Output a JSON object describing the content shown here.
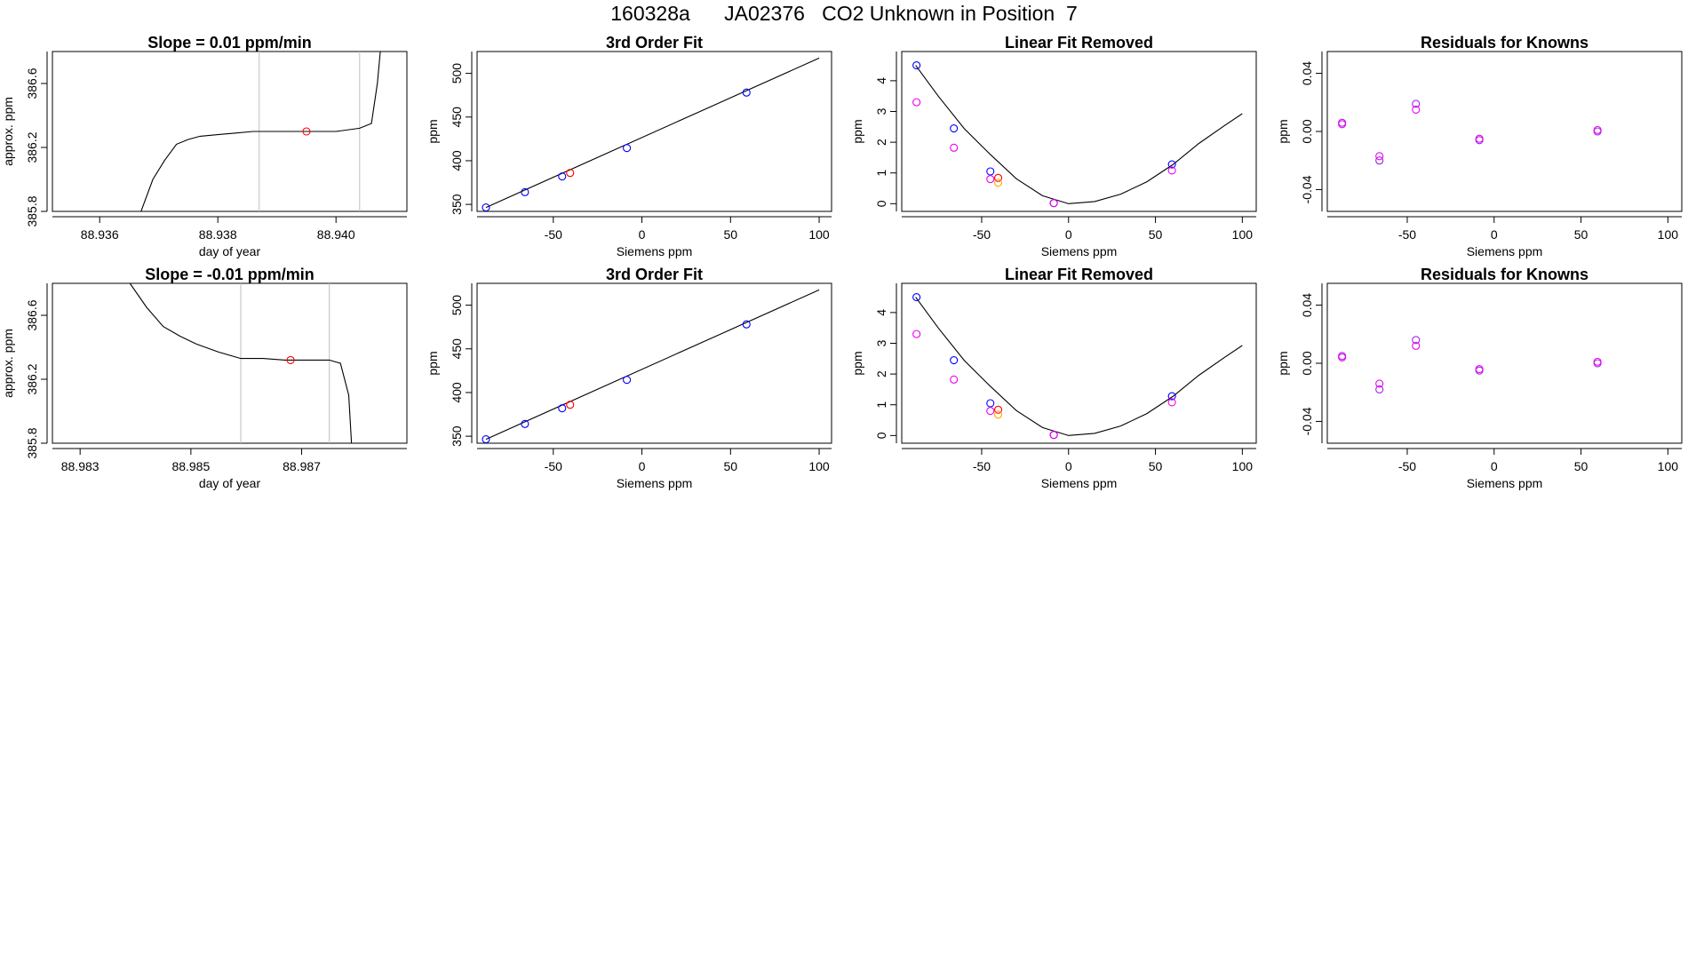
{
  "figure": {
    "main_title": "160328a      JA02376   CO2 Unknown in Position  7"
  },
  "colors": {
    "axis": "#000000",
    "line": "#000000",
    "vline": "#bebebe",
    "blue": "#0000ff",
    "purple": "#a020f0",
    "magenta": "#ee00ee",
    "red": "#ff0000",
    "orange": "#ffa500"
  },
  "chart_data": [
    {
      "id": "ts1",
      "type": "line",
      "title": "Slope =  0.01  ppm/min",
      "xlabel": "day of year",
      "ylabel": "approx. ppm",
      "xlim": [
        88.9352,
        88.9412
      ],
      "ylim": [
        385.8,
        386.8
      ],
      "xticks": [
        "88.936",
        "88.938",
        "88.940"
      ],
      "xtick_values": [
        88.936,
        88.938,
        88.94
      ],
      "yticks": [
        "385.8",
        "386.2",
        "386.6"
      ],
      "ytick_values": [
        385.8,
        386.2,
        386.6
      ],
      "vlines": [
        88.9387,
        88.9404
      ],
      "series": [
        {
          "style": "line",
          "x": [
            88.9367,
            88.9369,
            88.9371,
            88.9373,
            88.9375,
            88.9377,
            88.938,
            88.9383,
            88.9386,
            88.939,
            88.9395,
            88.94,
            88.9404,
            88.9406,
            88.9407,
            88.94075
          ],
          "y": [
            385.8,
            386.0,
            386.12,
            386.22,
            386.25,
            386.27,
            386.28,
            386.29,
            386.3,
            386.3,
            386.3,
            386.3,
            386.32,
            386.35,
            386.6,
            386.8
          ]
        },
        {
          "style": "points",
          "color": "red",
          "x": [
            88.9395
          ],
          "y": [
            386.3
          ]
        }
      ]
    },
    {
      "id": "fit1",
      "type": "scatter",
      "title": "3rd Order Fit",
      "xlabel": "Siemens ppm",
      "ylabel": "ppm",
      "xlim": [
        -93,
        107
      ],
      "ylim": [
        342,
        525
      ],
      "xticks": [
        "-50",
        "0",
        "50",
        "100"
      ],
      "xtick_values": [
        -50,
        0,
        50,
        100
      ],
      "yticks": [
        "350",
        "400",
        "450",
        "500"
      ],
      "ytick_values": [
        350,
        400,
        450,
        500
      ],
      "curve": {
        "x": [
          -88,
          100
        ],
        "y": [
          346.5,
          517.5
        ]
      },
      "series": [
        {
          "style": "points",
          "color": "blue",
          "x": [
            -88,
            -66,
            -45,
            -8.5,
            59
          ],
          "y": [
            346.5,
            364,
            382,
            414.5,
            478
          ]
        },
        {
          "style": "points",
          "color": "red",
          "x": [
            -40.5
          ],
          "y": [
            386
          ]
        }
      ]
    },
    {
      "id": "lin1",
      "type": "scatter",
      "title": "Linear Fit Removed",
      "xlabel": "Siemens ppm",
      "ylabel": "ppm",
      "xlim": [
        -96,
        108
      ],
      "ylim": [
        -0.25,
        4.95
      ],
      "xticks": [
        "-50",
        "0",
        "50",
        "100"
      ],
      "xtick_values": [
        -50,
        0,
        50,
        100
      ],
      "yticks": [
        "0",
        "1",
        "2",
        "3",
        "4"
      ],
      "ytick_values": [
        0,
        1,
        2,
        3,
        4
      ],
      "curve": {
        "x": [
          -88,
          -75,
          -60,
          -45,
          -30,
          -15,
          0,
          15,
          30,
          45,
          60,
          75,
          90,
          100
        ],
        "y": [
          4.5,
          3.5,
          2.44,
          1.6,
          0.81,
          0.26,
          0.0,
          0.07,
          0.31,
          0.71,
          1.27,
          1.96,
          2.55,
          2.93
        ]
      },
      "series": [
        {
          "style": "points",
          "color": "blue",
          "x": [
            -87.5,
            -66,
            -45,
            -8.5,
            59.5
          ],
          "y": [
            4.5,
            2.45,
            1.05,
            0.02,
            1.28
          ]
        },
        {
          "style": "points",
          "color": "magenta",
          "x": [
            -87.5,
            -66,
            -45,
            -8.5,
            59.5
          ],
          "y": [
            3.3,
            1.82,
            0.8,
            0.02,
            1.08
          ]
        },
        {
          "style": "points",
          "color": "red",
          "x": [
            -40.5
          ],
          "y": [
            0.84
          ]
        },
        {
          "style": "points",
          "color": "orange",
          "x": [
            -40.5
          ],
          "y": [
            0.68
          ]
        }
      ]
    },
    {
      "id": "res1",
      "type": "scatter",
      "title": "Residuals for Knowns",
      "xlabel": "Siemens ppm",
      "ylabel": "ppm",
      "xlim": [
        -96,
        108
      ],
      "ylim": [
        -0.055,
        0.055
      ],
      "xticks": [
        "-50",
        "0",
        "50",
        "100"
      ],
      "xtick_values": [
        -50,
        0,
        50,
        100
      ],
      "yticks": [
        "-0.04",
        "0.00",
        "0.04"
      ],
      "ytick_values": [
        -0.04,
        0.0,
        0.04
      ],
      "series": [
        {
          "style": "points",
          "color": "purple",
          "x": [
            -87.5,
            -66,
            -45,
            -8.5,
            59.5
          ],
          "y": [
            0.006,
            -0.02,
            0.019,
            -0.006,
            0.0
          ]
        },
        {
          "style": "points",
          "color": "magenta",
          "x": [
            -87.5,
            -66,
            -45,
            -8.5,
            59.5
          ],
          "y": [
            0.005,
            -0.017,
            0.015,
            -0.005,
            0.001
          ]
        }
      ]
    },
    {
      "id": "ts2",
      "type": "line",
      "title": "Slope =  -0.01  ppm/min",
      "xlabel": "day of year",
      "ylabel": "approx. ppm",
      "xlim": [
        88.9825,
        88.9889
      ],
      "ylim": [
        385.8,
        386.8
      ],
      "xticks": [
        "88.983",
        "88.985",
        "88.987"
      ],
      "xtick_values": [
        88.983,
        88.985,
        88.987
      ],
      "yticks": [
        "385.8",
        "386.2",
        "386.6"
      ],
      "ytick_values": [
        385.8,
        386.2,
        386.6
      ],
      "vlines": [
        88.9859,
        88.9875
      ],
      "series": [
        {
          "style": "line",
          "x": [
            88.9839,
            88.9842,
            88.9845,
            88.9848,
            88.9851,
            88.9855,
            88.9859,
            88.9863,
            88.9867,
            88.9871,
            88.9875,
            88.9877,
            88.98785,
            88.9879
          ],
          "y": [
            386.8,
            386.65,
            386.53,
            386.47,
            386.42,
            386.37,
            386.33,
            386.33,
            386.32,
            386.32,
            386.32,
            386.3,
            386.1,
            385.8
          ]
        },
        {
          "style": "points",
          "color": "red",
          "x": [
            88.9868
          ],
          "y": [
            386.32
          ]
        }
      ]
    },
    {
      "id": "fit2",
      "type": "scatter",
      "title": "3rd Order Fit",
      "xlabel": "Siemens ppm",
      "ylabel": "ppm",
      "xlim": [
        -93,
        107
      ],
      "ylim": [
        342,
        525
      ],
      "xticks": [
        "-50",
        "0",
        "50",
        "100"
      ],
      "xtick_values": [
        -50,
        0,
        50,
        100
      ],
      "yticks": [
        "350",
        "400",
        "450",
        "500"
      ],
      "ytick_values": [
        350,
        400,
        450,
        500
      ],
      "curve": {
        "x": [
          -88,
          100
        ],
        "y": [
          346.5,
          517.5
        ]
      },
      "series": [
        {
          "style": "points",
          "color": "blue",
          "x": [
            -88,
            -66,
            -45,
            -8.5,
            59
          ],
          "y": [
            346.5,
            364,
            382,
            414.5,
            478
          ]
        },
        {
          "style": "points",
          "color": "red",
          "x": [
            -40.5
          ],
          "y": [
            386
          ]
        }
      ]
    },
    {
      "id": "lin2",
      "type": "scatter",
      "title": "Linear Fit Removed",
      "xlabel": "Siemens ppm",
      "ylabel": "ppm",
      "xlim": [
        -96,
        108
      ],
      "ylim": [
        -0.25,
        4.95
      ],
      "xticks": [
        "-50",
        "0",
        "50",
        "100"
      ],
      "xtick_values": [
        -50,
        0,
        50,
        100
      ],
      "yticks": [
        "0",
        "1",
        "2",
        "3",
        "4"
      ],
      "ytick_values": [
        0,
        1,
        2,
        3,
        4
      ],
      "curve": {
        "x": [
          -88,
          -75,
          -60,
          -45,
          -30,
          -15,
          0,
          15,
          30,
          45,
          60,
          75,
          90,
          100
        ],
        "y": [
          4.5,
          3.5,
          2.44,
          1.6,
          0.81,
          0.26,
          0.0,
          0.07,
          0.31,
          0.71,
          1.27,
          1.96,
          2.55,
          2.93
        ]
      },
      "series": [
        {
          "style": "points",
          "color": "blue",
          "x": [
            -87.5,
            -66,
            -45,
            -8.5,
            59.5
          ],
          "y": [
            4.5,
            2.45,
            1.05,
            0.02,
            1.28
          ]
        },
        {
          "style": "points",
          "color": "magenta",
          "x": [
            -87.5,
            -66,
            -45,
            -8.5,
            59.5
          ],
          "y": [
            3.3,
            1.82,
            0.8,
            0.02,
            1.08
          ]
        },
        {
          "style": "points",
          "color": "red",
          "x": [
            -40.5
          ],
          "y": [
            0.84
          ]
        },
        {
          "style": "points",
          "color": "orange",
          "x": [
            -40.5
          ],
          "y": [
            0.68
          ]
        }
      ]
    },
    {
      "id": "res2",
      "type": "scatter",
      "title": "Residuals for Knowns",
      "xlabel": "Siemens ppm",
      "ylabel": "ppm",
      "xlim": [
        -96,
        108
      ],
      "ylim": [
        -0.055,
        0.055
      ],
      "xticks": [
        "-50",
        "0",
        "50",
        "100"
      ],
      "xtick_values": [
        -50,
        0,
        50,
        100
      ],
      "yticks": [
        "-0.04",
        "0.00",
        "0.04"
      ],
      "ytick_values": [
        -0.04,
        0.0,
        0.04
      ],
      "series": [
        {
          "style": "points",
          "color": "purple",
          "x": [
            -87.5,
            -66,
            -45,
            -8.5,
            59.5
          ],
          "y": [
            0.005,
            -0.018,
            0.016,
            -0.005,
            0.0
          ]
        },
        {
          "style": "points",
          "color": "magenta",
          "x": [
            -87.5,
            -66,
            -45,
            -8.5,
            59.5
          ],
          "y": [
            0.004,
            -0.014,
            0.012,
            -0.004,
            0.001
          ]
        }
      ]
    }
  ]
}
